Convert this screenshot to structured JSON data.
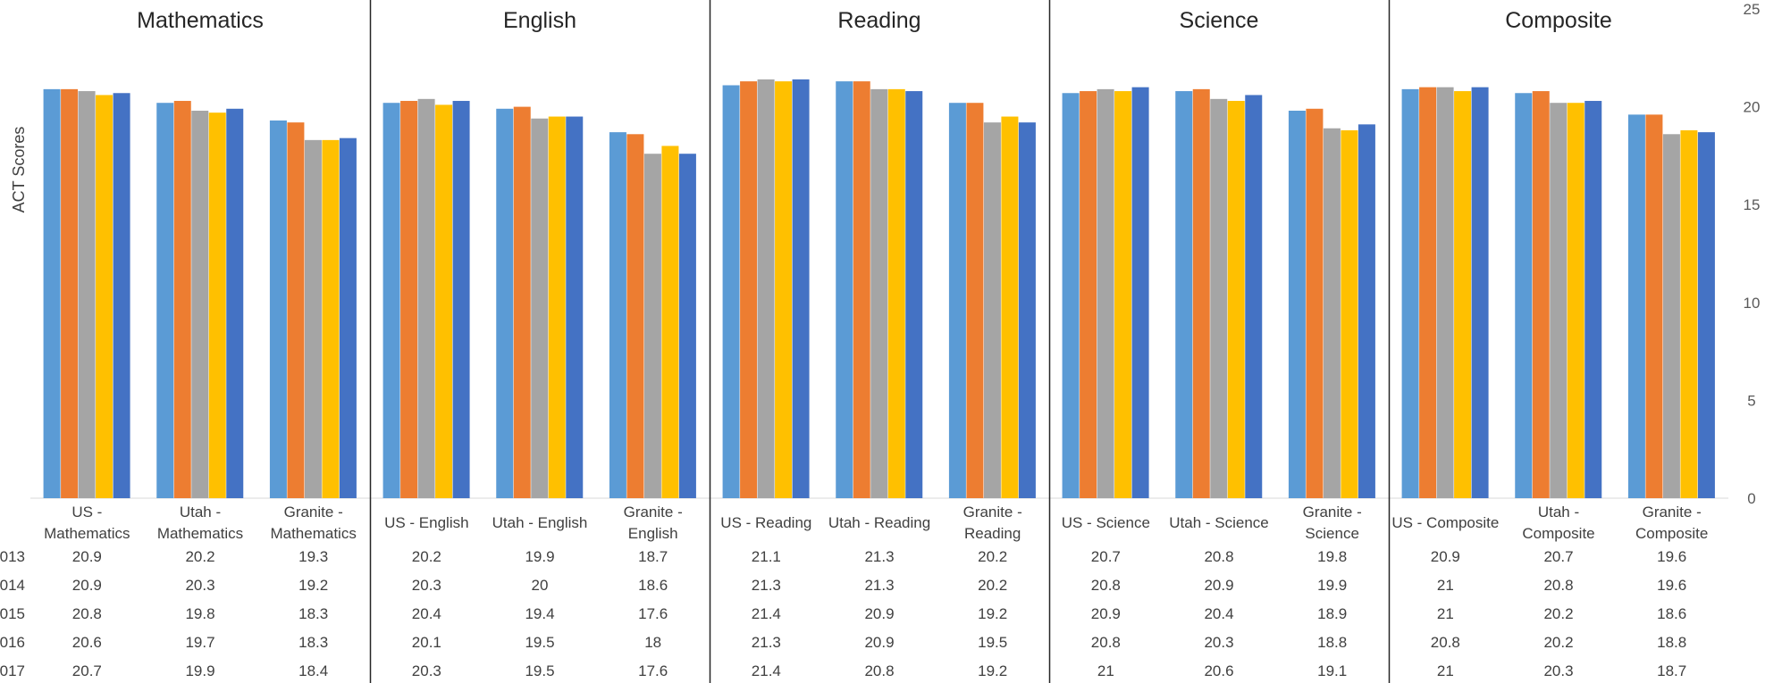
{
  "chart_data": {
    "type": "bar",
    "ylabel": "ACT Scores",
    "ylim": [
      0,
      25
    ],
    "yticks": [
      0,
      5,
      10,
      15,
      20,
      25
    ],
    "grid": false,
    "series_colors": [
      "#5B9BD5",
      "#ED7D31",
      "#A5A5A5",
      "#FFC000",
      "#4472C4"
    ],
    "year_labels": [
      "013",
      "014",
      "015",
      "016",
      "017"
    ],
    "panels": [
      {
        "title": "Mathematics",
        "categories": [
          "US - Mathematics",
          "Utah - Mathematics",
          "Granite - Mathematics"
        ],
        "category_lines": [
          [
            "US -",
            "Mathematics"
          ],
          [
            "Utah -",
            "Mathematics"
          ],
          [
            "Granite -",
            "Mathematics"
          ]
        ],
        "values": [
          [
            20.9,
            20.9,
            20.8,
            20.6,
            20.7
          ],
          [
            20.2,
            20.3,
            19.8,
            19.7,
            19.9
          ],
          [
            19.3,
            19.2,
            18.3,
            18.3,
            18.4
          ]
        ]
      },
      {
        "title": "English",
        "categories": [
          "US - English",
          "Utah - English",
          "Granite - English"
        ],
        "category_lines": [
          [
            "US - English"
          ],
          [
            "Utah - English"
          ],
          [
            "Granite -",
            "English"
          ]
        ],
        "values": [
          [
            20.2,
            20.3,
            20.4,
            20.1,
            20.3
          ],
          [
            19.9,
            20,
            19.4,
            19.5,
            19.5
          ],
          [
            18.7,
            18.6,
            17.6,
            18,
            17.6
          ]
        ]
      },
      {
        "title": "Reading",
        "categories": [
          "US - Reading",
          "Utah - Reading",
          "Granite - Reading"
        ],
        "category_lines": [
          [
            "US - Reading"
          ],
          [
            "Utah - Reading"
          ],
          [
            "Granite -",
            "Reading"
          ]
        ],
        "values": [
          [
            21.1,
            21.3,
            21.4,
            21.3,
            21.4
          ],
          [
            21.3,
            21.3,
            20.9,
            20.9,
            20.8
          ],
          [
            20.2,
            20.2,
            19.2,
            19.5,
            19.2
          ]
        ]
      },
      {
        "title": "Science",
        "categories": [
          "US - Science",
          "Utah - Science",
          "Granite - Science"
        ],
        "category_lines": [
          [
            "US - Science"
          ],
          [
            "Utah - Science"
          ],
          [
            "Granite -",
            "Science"
          ]
        ],
        "values": [
          [
            20.7,
            20.8,
            20.9,
            20.8,
            21
          ],
          [
            20.8,
            20.9,
            20.4,
            20.3,
            20.6
          ],
          [
            19.8,
            19.9,
            18.9,
            18.8,
            19.1
          ]
        ]
      },
      {
        "title": "Composite",
        "categories": [
          "US - Composite",
          "Utah - Composite",
          "Granite - Composite"
        ],
        "category_lines": [
          [
            "US - Composite"
          ],
          [
            "Utah -",
            "Composite"
          ],
          [
            "Granite -",
            "Composite"
          ]
        ],
        "values": [
          [
            20.9,
            21,
            21,
            20.8,
            21
          ],
          [
            20.7,
            20.8,
            20.2,
            20.2,
            20.3
          ],
          [
            19.6,
            19.6,
            18.6,
            18.8,
            18.7
          ]
        ]
      }
    ]
  }
}
